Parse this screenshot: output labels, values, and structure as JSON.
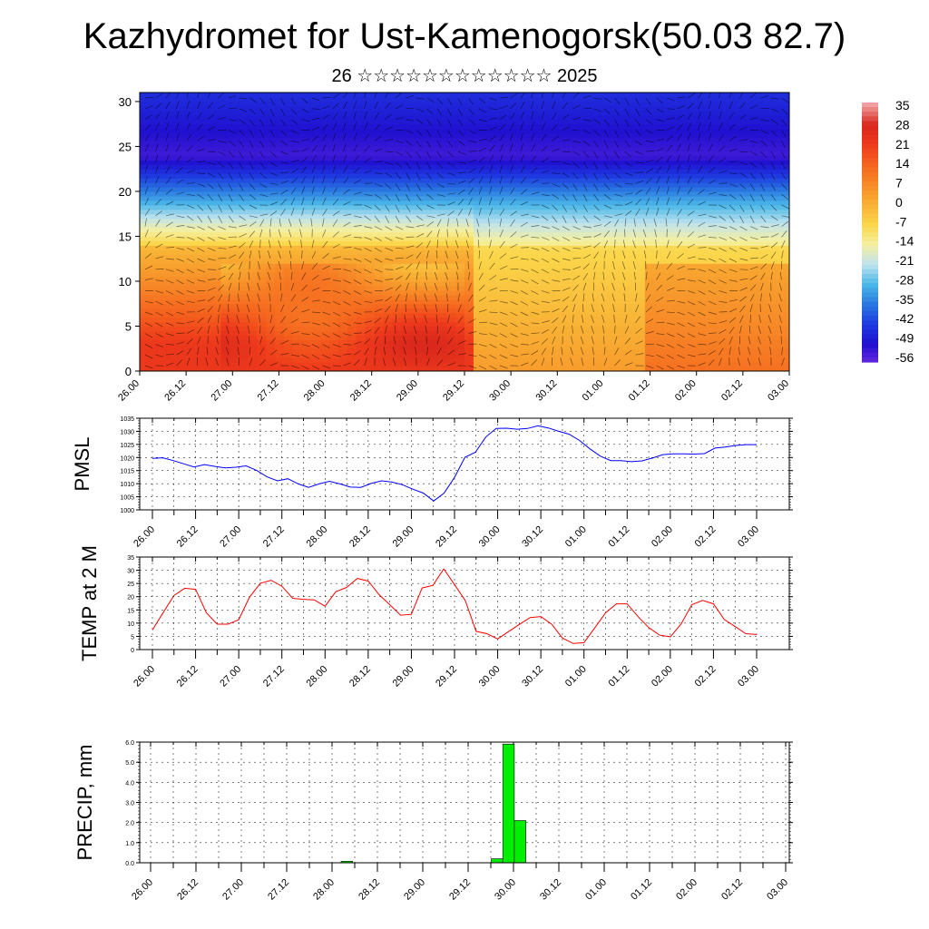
{
  "title": "Kazhydromet for Ust-Kamenogorsk(50.03 82.7)",
  "subtitle": "26 ☆☆☆☆☆☆☆☆☆☆☆☆ 2025",
  "chart_data": [
    {
      "type": "heatmap",
      "name": "vertical cross-section",
      "x_ticks": [
        "26.00",
        "26.12",
        "27.00",
        "27.12",
        "28.00",
        "28.12",
        "29.00",
        "29.12",
        "30.00",
        "30.12",
        "01.00",
        "01.12",
        "02.00",
        "02.12",
        "03.00"
      ],
      "y_ticks": [
        0,
        5,
        10,
        15,
        20,
        25,
        30
      ],
      "ylim": [
        0,
        31
      ],
      "colorbar": {
        "labels": [
          "35",
          "28",
          "21",
          "14",
          "7",
          "0",
          "-7",
          "-14",
          "-21",
          "-28",
          "-35",
          "-42",
          "-49",
          "-56"
        ],
        "colors": [
          "#f0a0a0",
          "#d8261c",
          "#ee3a1c",
          "#f5641e",
          "#f78c28",
          "#f8b034",
          "#fbd64a",
          "#f5f0a0",
          "#bfe2ee",
          "#4cb8e8",
          "#2a78e0",
          "#1e3ae0",
          "#2010d0",
          "#6a2ae0"
        ]
      }
    },
    {
      "type": "line",
      "ylabel": "PMSL",
      "ylim": [
        1000,
        1035
      ],
      "y_ticks": [
        1000,
        1005,
        1010,
        1015,
        1020,
        1025,
        1030,
        1035
      ],
      "x_ticks": [
        "26.00",
        "26.12",
        "27.00",
        "27.12",
        "28.00",
        "28.12",
        "29.00",
        "29.12",
        "30.00",
        "30.12",
        "01.00",
        "01.12",
        "02.00",
        "02.12",
        "03.00"
      ],
      "color": "#0000ff",
      "values": [
        1019.7,
        1019.9,
        1018.8,
        1017.6,
        1016.4,
        1017.3,
        1016.6,
        1016.0,
        1016.3,
        1016.8,
        1015.1,
        1012.6,
        1011.1,
        1011.9,
        1009.9,
        1008.6,
        1009.9,
        1010.9,
        1009.9,
        1008.7,
        1008.6,
        1010.1,
        1011.1,
        1010.6,
        1009.6,
        1007.9,
        1006.4,
        1003.4,
        1006.4,
        1012.4,
        1020.1,
        1022.0,
        1027.8,
        1031.1,
        1031.2,
        1030.8,
        1031.1,
        1032.1,
        1031.3,
        1030.0,
        1028.9,
        1026.5,
        1023.3,
        1020.5,
        1018.8,
        1018.8,
        1018.4,
        1018.7,
        1019.8,
        1021.1,
        1021.4,
        1021.4,
        1021.3,
        1021.5,
        1023.6,
        1024.0,
        1024.6,
        1024.9,
        1024.9
      ]
    },
    {
      "type": "line",
      "ylabel": "TEMP at 2 M",
      "ylim": [
        0,
        35
      ],
      "y_ticks": [
        0,
        5,
        10,
        15,
        20,
        25,
        30,
        35
      ],
      "x_ticks": [
        "26.00",
        "26.12",
        "27.00",
        "27.12",
        "28.00",
        "28.12",
        "29.00",
        "29.12",
        "30.00",
        "30.12",
        "01.00",
        "01.12",
        "02.00",
        "02.12",
        "03.00"
      ],
      "color": "#ff0000",
      "values": [
        7.4,
        14.0,
        20.5,
        23.2,
        22.8,
        13.9,
        9.6,
        9.6,
        11.3,
        19.8,
        25.1,
        26.2,
        24.0,
        19.4,
        19.0,
        18.8,
        16.4,
        21.9,
        23.5,
        26.9,
        25.9,
        20.8,
        17.0,
        13.0,
        13.3,
        23.3,
        24.3,
        30.5,
        24.6,
        18.5,
        6.9,
        6.0,
        4.0,
        6.8,
        9.5,
        12.1,
        12.5,
        9.6,
        4.4,
        2.3,
        2.6,
        8.2,
        13.9,
        17.3,
        17.3,
        12.5,
        8.3,
        5.5,
        4.8,
        9.7,
        17.0,
        18.6,
        17.3,
        11.4,
        8.7,
        6.0,
        5.7
      ]
    },
    {
      "type": "bar",
      "ylabel": "PRECIP, mm",
      "ylim": [
        0,
        6
      ],
      "y_ticks": [
        "0.0",
        "1.0",
        "2.0",
        "3.0",
        "4.0",
        "5.0",
        "6.0"
      ],
      "x_ticks": [
        "26.00",
        "26.12",
        "27.00",
        "27.12",
        "28.00",
        "28.12",
        "29.00",
        "29.12",
        "30.00",
        "30.12",
        "01.00",
        "01.12",
        "02.00",
        "02.12",
        "03.00"
      ],
      "color": "#00ee00",
      "values": [
        0,
        0,
        0,
        0,
        0,
        0,
        0,
        0,
        0,
        0,
        0,
        0,
        0,
        0,
        0,
        0,
        0,
        0.07,
        0,
        0,
        0,
        0,
        0,
        0,
        0,
        0,
        0,
        0,
        0,
        0,
        0.2,
        5.9,
        2.1,
        0,
        0,
        0,
        0,
        0,
        0,
        0,
        0,
        0,
        0,
        0,
        0,
        0,
        0,
        0,
        0,
        0,
        0,
        0,
        0,
        0,
        0,
        0
      ]
    }
  ]
}
